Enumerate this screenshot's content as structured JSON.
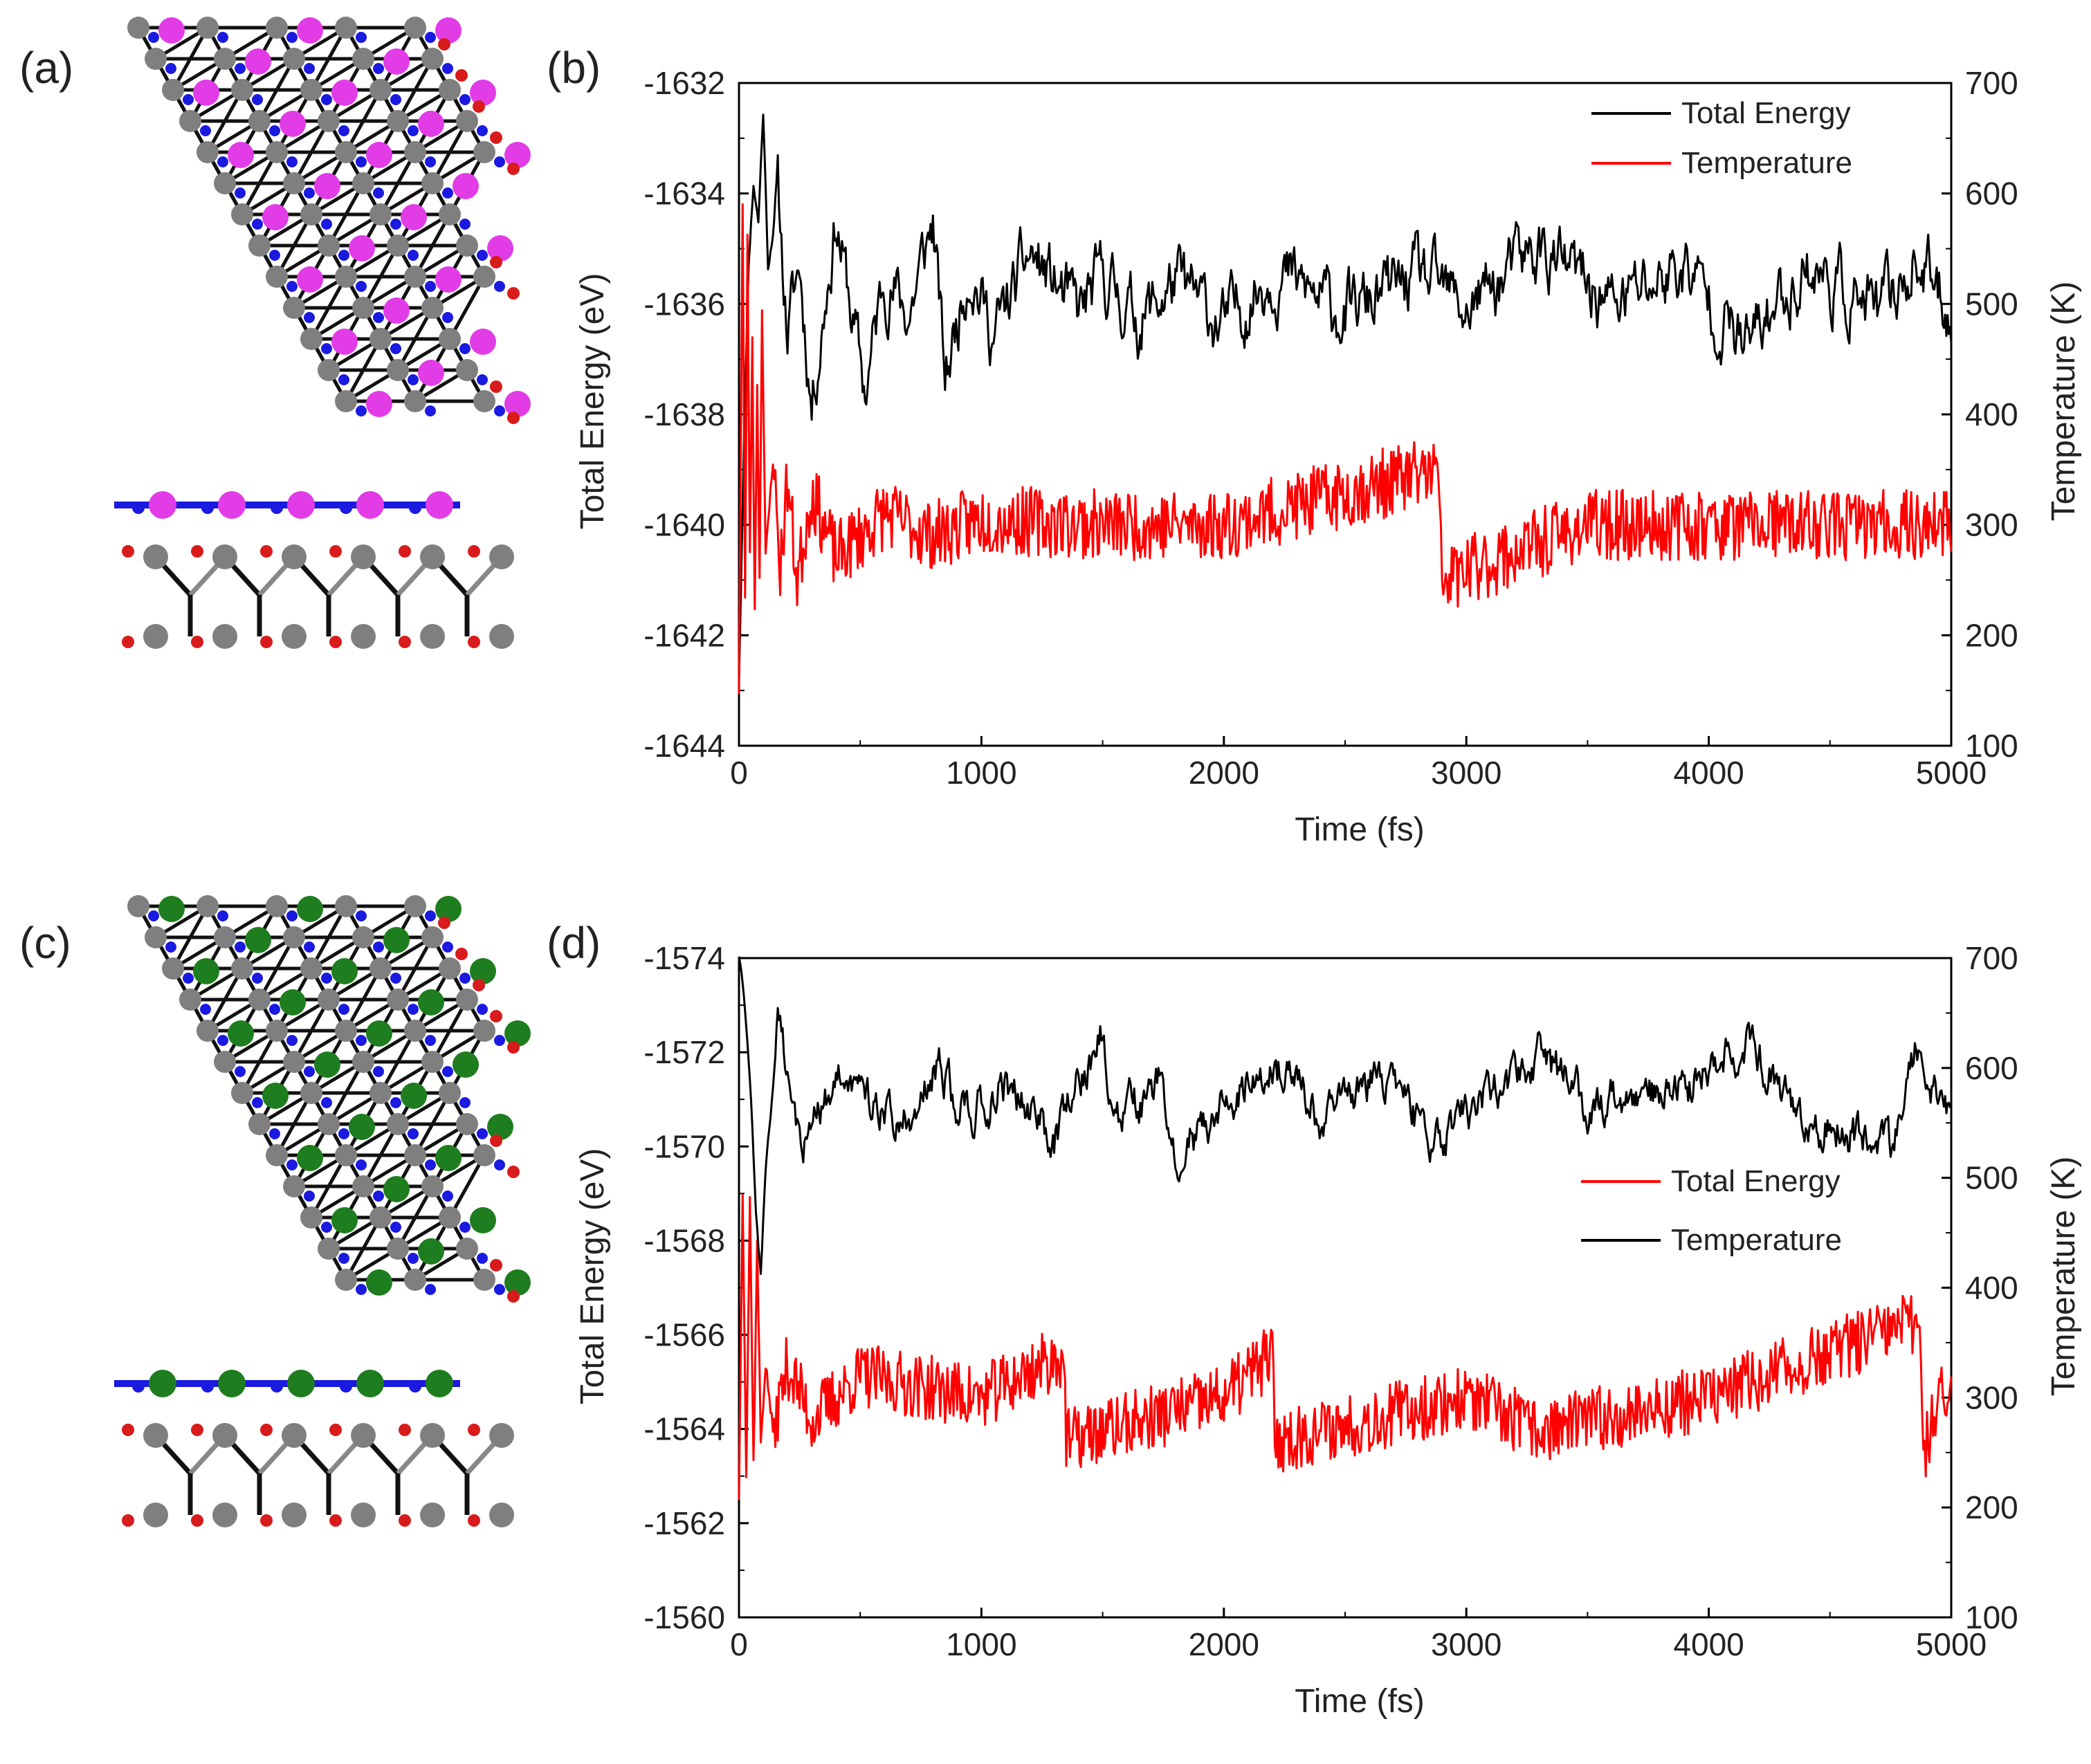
{
  "panels": {
    "a": {
      "label": "(a)",
      "dopant_color": "#e23ce6"
    },
    "b": {
      "label": "(b)"
    },
    "c": {
      "label": "(c)",
      "dopant_color": "#1e7d1e"
    },
    "d": {
      "label": "(d)"
    }
  },
  "molecule_colors": {
    "carbon": "#7f7f7f",
    "oxygen": "#d81b1b",
    "nitrogen": "#1a1ae0",
    "bond": "#111111"
  },
  "chart_data": [
    {
      "type": "line",
      "panel": "b",
      "xlabel": "Time (fs)",
      "ylabel": "Total Energy (eV)",
      "y2label": "Temperature (K)",
      "xlim": [
        0,
        5000
      ],
      "ylim": [
        -1644,
        -1632
      ],
      "y2lim": [
        100,
        700
      ],
      "xticks": [
        "0",
        "1000",
        "2000",
        "3000",
        "4000",
        "5000"
      ],
      "yticks": [
        "-1644",
        "-1642",
        "-1640",
        "-1638",
        "-1636",
        "-1634",
        "-1632"
      ],
      "y2ticks": [
        "100",
        "200",
        "300",
        "400",
        "500",
        "600",
        "700"
      ],
      "legend_position": "top-right",
      "series": [
        {
          "name": "Total Energy",
          "axis": "left",
          "color": "#000000",
          "mean": -1635.9,
          "amplitude": 0.45,
          "seed": 11,
          "points": [
            [
              0,
              -1642.8
            ],
            [
              20,
              -1638.5
            ],
            [
              40,
              -1635.2
            ],
            [
              60,
              -1633.8
            ],
            [
              80,
              -1634.5
            ],
            [
              100,
              -1632.5
            ],
            [
              120,
              -1635.3
            ],
            [
              160,
              -1634.0
            ],
            [
              200,
              -1636.5
            ],
            [
              250,
              -1635.3
            ],
            [
              300,
              -1637.8
            ],
            [
              350,
              -1636.1
            ],
            [
              400,
              -1634.4
            ],
            [
              450,
              -1635.8
            ],
            [
              520,
              -1637.6
            ],
            [
              600,
              -1635.5
            ],
            [
              700,
              -1636.2
            ],
            [
              800,
              -1634.5
            ],
            [
              850,
              -1637.4
            ],
            [
              950,
              -1635.2
            ],
            [
              1050,
              -1636.6
            ],
            [
              1200,
              -1635.1
            ],
            [
              1400,
              -1636.2
            ],
            [
              1500,
              -1635.5
            ],
            [
              1650,
              -1636.3
            ],
            [
              1800,
              -1635.6
            ],
            [
              2000,
              -1636.4
            ],
            [
              2200,
              -1635.4
            ],
            [
              2500,
              -1636.2
            ],
            [
              2800,
              -1635.5
            ],
            [
              3000,
              -1636.1
            ],
            [
              3300,
              -1635.0
            ],
            [
              3600,
              -1636.0
            ],
            [
              3900,
              -1635.3
            ],
            [
              4150,
              -1636.8
            ],
            [
              4400,
              -1635.3
            ],
            [
              4700,
              -1636.2
            ],
            [
              4850,
              -1635.2
            ],
            [
              5000,
              -1636.1
            ]
          ]
        },
        {
          "name": "Temperature",
          "axis": "right",
          "color": "#ff0000",
          "mean": 300,
          "amplitude": 32,
          "seed": 23,
          "points": [
            [
              0,
              150
            ],
            [
              15,
              590
            ],
            [
              25,
              230
            ],
            [
              35,
              560
            ],
            [
              45,
              270
            ],
            [
              55,
              470
            ],
            [
              65,
              220
            ],
            [
              75,
              430
            ],
            [
              85,
              250
            ],
            [
              95,
              500
            ],
            [
              110,
              270
            ],
            [
              140,
              360
            ],
            [
              170,
              260
            ],
            [
              200,
              340
            ],
            [
              240,
              250
            ],
            [
              300,
              330
            ],
            [
              400,
              270
            ],
            [
              600,
              310
            ],
            [
              800,
              290
            ],
            [
              1000,
              305
            ],
            [
              1500,
              300
            ],
            [
              2000,
              300
            ],
            [
              2880,
              350
            ],
            [
              2900,
              250
            ],
            [
              3500,
              300
            ],
            [
              4000,
              300
            ],
            [
              4500,
              300
            ],
            [
              5000,
              300
            ]
          ]
        }
      ]
    },
    {
      "type": "line",
      "panel": "d",
      "xlabel": "Time (fs)",
      "ylabel": "Total Energy (eV)",
      "y2label": "Temperature (K)",
      "xlim": [
        0,
        5000
      ],
      "ylim": [
        -1560,
        -1574
      ],
      "y2lim": [
        100,
        700
      ],
      "xticks": [
        "0",
        "1000",
        "2000",
        "3000",
        "4000",
        "5000"
      ],
      "yticks": [
        "-1560",
        "-1562",
        "-1564",
        "-1566",
        "-1568",
        "-1570",
        "-1572",
        "-1574"
      ],
      "y2ticks": [
        "100",
        "200",
        "300",
        "400",
        "500",
        "600",
        "700"
      ],
      "legend_position": "middle-right",
      "series": [
        {
          "name": "Total Energy",
          "axis": "right",
          "color": "#ff0000",
          "mean": 300,
          "amplitude": 30,
          "seed": 37,
          "points": [
            [
              0,
              210
            ],
            [
              15,
              490
            ],
            [
              30,
              230
            ],
            [
              45,
              480
            ],
            [
              60,
              240
            ],
            [
              75,
              440
            ],
            [
              90,
              260
            ],
            [
              110,
              330
            ],
            [
              140,
              270
            ],
            [
              200,
              330
            ],
            [
              300,
              280
            ],
            [
              500,
              320
            ],
            [
              1000,
              300
            ],
            [
              1340,
              340
            ],
            [
              1350,
              260
            ],
            [
              2000,
              300
            ],
            [
              2200,
              340
            ],
            [
              2210,
              260
            ],
            [
              3000,
              300
            ],
            [
              3290,
              270
            ],
            [
              4000,
              300
            ],
            [
              4870,
              370
            ],
            [
              4890,
              250
            ],
            [
              4950,
              300
            ],
            [
              5000,
              300
            ]
          ]
        },
        {
          "name": "Temperature",
          "axis": "left",
          "color": "#000000",
          "mean": -1570.9,
          "amplitude": 0.35,
          "seed": 53,
          "points": [
            [
              0,
              -1574
            ],
            [
              20,
              -1573.2
            ],
            [
              50,
              -1571.0
            ],
            [
              70,
              -1568.5
            ],
            [
              90,
              -1567.2
            ],
            [
              110,
              -1569.5
            ],
            [
              140,
              -1571.2
            ],
            [
              160,
              -1572.8
            ],
            [
              180,
              -1572.0
            ],
            [
              220,
              -1570.3
            ],
            [
              260,
              -1569.8
            ],
            [
              330,
              -1570.8
            ],
            [
              400,
              -1571.6
            ],
            [
              500,
              -1571.0
            ],
            [
              700,
              -1570.5
            ],
            [
              830,
              -1572.0
            ],
            [
              900,
              -1570.6
            ],
            [
              1100,
              -1571.3
            ],
            [
              1300,
              -1570.2
            ],
            [
              1490,
              -1572.3
            ],
            [
              1550,
              -1570.5
            ],
            [
              1750,
              -1571.3
            ],
            [
              1800,
              -1569.7
            ],
            [
              2000,
              -1571.0
            ],
            [
              2200,
              -1571.8
            ],
            [
              2400,
              -1570.6
            ],
            [
              2600,
              -1571.4
            ],
            [
              2900,
              -1570.2
            ],
            [
              3300,
              -1572.0
            ],
            [
              3500,
              -1570.8
            ],
            [
              3900,
              -1571.3
            ],
            [
              4150,
              -1572.2
            ],
            [
              4400,
              -1570.6
            ],
            [
              4750,
              -1570.0
            ],
            [
              4850,
              -1572.0
            ],
            [
              5000,
              -1570.5
            ]
          ]
        }
      ]
    }
  ]
}
